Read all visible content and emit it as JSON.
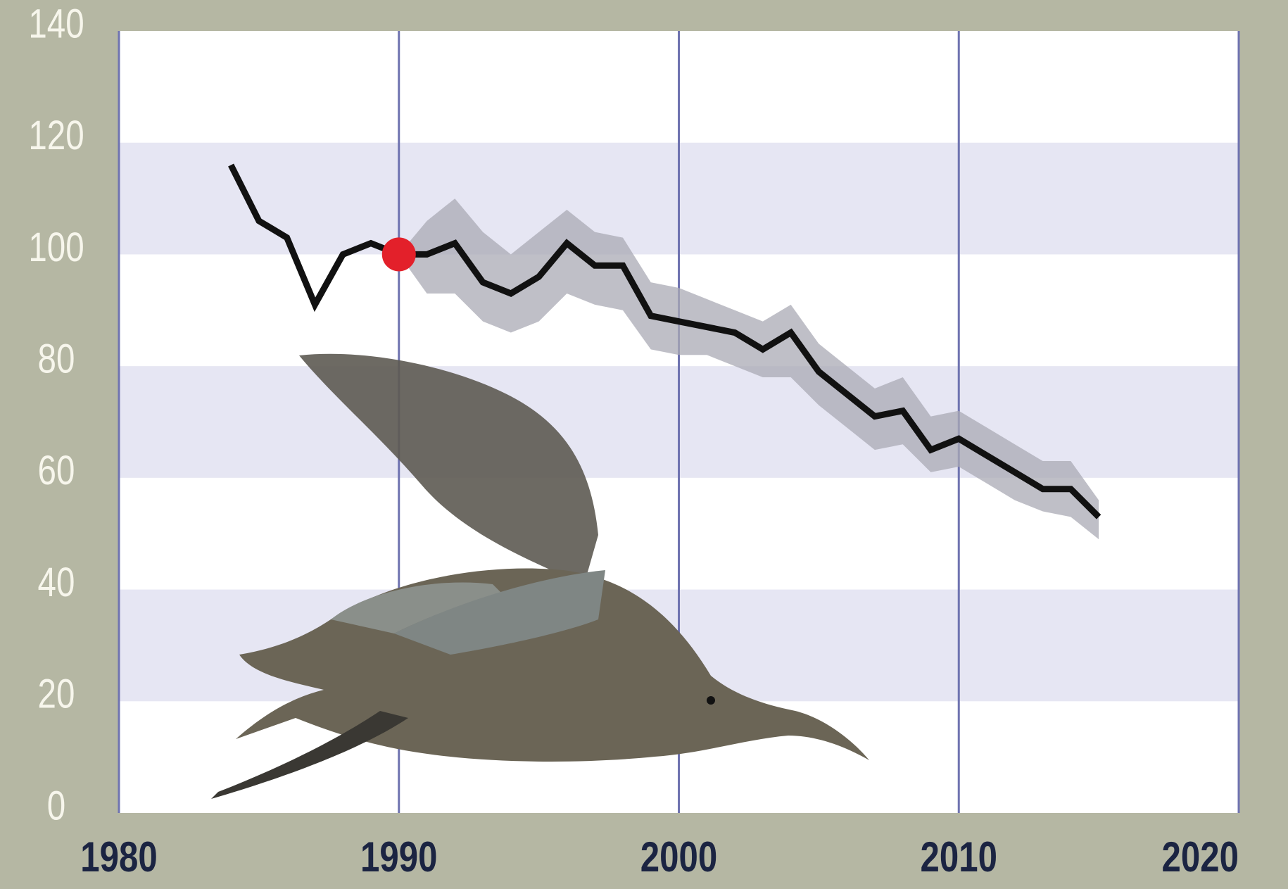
{
  "chart_data": {
    "type": "line",
    "x": [
      1984,
      1985,
      1986,
      1987,
      1988,
      1989,
      1990,
      1991,
      1992,
      1993,
      1994,
      1995,
      1996,
      1997,
      1998,
      1999,
      2000,
      2001,
      2002,
      2003,
      2004,
      2005,
      2006,
      2007,
      2008,
      2009,
      2010,
      2011,
      2012,
      2013,
      2014,
      2015
    ],
    "values": [
      116,
      106,
      103,
      91,
      100,
      102,
      100,
      100,
      102,
      95,
      93,
      96,
      102,
      98,
      98,
      89,
      88,
      87,
      86,
      83,
      86,
      79,
      75,
      71,
      72,
      65,
      67,
      64,
      61,
      58,
      58,
      53
    ],
    "color": "#111111",
    "band": {
      "x": [
        1990,
        1991,
        1992,
        1993,
        1994,
        1995,
        1996,
        1997,
        1998,
        1999,
        2000,
        2001,
        2002,
        2003,
        2004,
        2005,
        2006,
        2007,
        2008,
        2009,
        2010,
        2011,
        2012,
        2013,
        2014,
        2015
      ],
      "upper": [
        100,
        106,
        110,
        104,
        100,
        104,
        108,
        104,
        103,
        95,
        94,
        92,
        90,
        88,
        91,
        84,
        80,
        76,
        78,
        71,
        72,
        69,
        66,
        63,
        63,
        56
      ],
      "lower": [
        100,
        93,
        93,
        88,
        86,
        88,
        93,
        91,
        90,
        83,
        82,
        82,
        80,
        78,
        78,
        73,
        69,
        65,
        66,
        61,
        62,
        59,
        56,
        54,
        53,
        49
      ],
      "color": "#a9a9b4"
    },
    "highlight": {
      "x": 1990,
      "y": 100,
      "color": "#e3202a"
    },
    "xlim": [
      1980,
      2020
    ],
    "xticks": [
      1980,
      1990,
      2000,
      2010,
      2020
    ],
    "ylim": [
      0,
      140
    ],
    "yticks": [
      0,
      20,
      40,
      60,
      80,
      100,
      120,
      140
    ],
    "grid": true,
    "grid_color": "#6f73b0",
    "stripe_color": "#e6e6f3"
  }
}
